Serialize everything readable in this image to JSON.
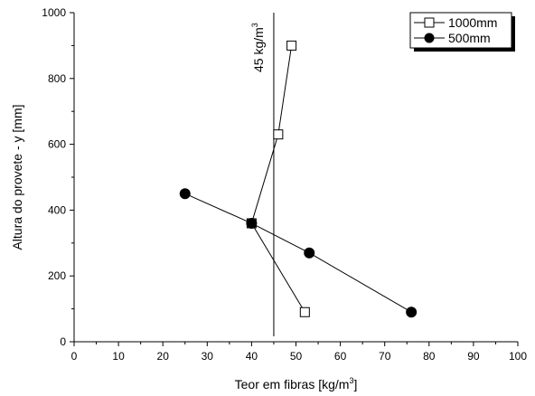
{
  "chart_data": {
    "type": "line",
    "title": "",
    "xlabel": "Teor em fibras [kg/m",
    "xlabel_sup": "3",
    "xlabel_end": "]",
    "ylabel": "Altura do provete - y [mm]",
    "xlim": [
      0,
      100
    ],
    "ylim": [
      0,
      1000
    ],
    "xticks": [
      0,
      10,
      20,
      30,
      40,
      50,
      60,
      70,
      80,
      90,
      100
    ],
    "yticks": [
      0,
      200,
      400,
      600,
      800,
      1000
    ],
    "grid": false,
    "legend_position": "top-right",
    "series": [
      {
        "name": "1000mm",
        "marker": "open-square",
        "color": "#000000",
        "x": [
          49,
          46,
          40,
          52
        ],
        "y": [
          900,
          630,
          360,
          90
        ]
      },
      {
        "name": "500mm",
        "marker": "filled-circle",
        "color": "#000000",
        "x": [
          25,
          40,
          53,
          76
        ],
        "y": [
          450,
          360,
          270,
          90
        ]
      }
    ],
    "reference_line": {
      "x": 45,
      "label": "45 kg/m",
      "label_sup": "3"
    }
  }
}
